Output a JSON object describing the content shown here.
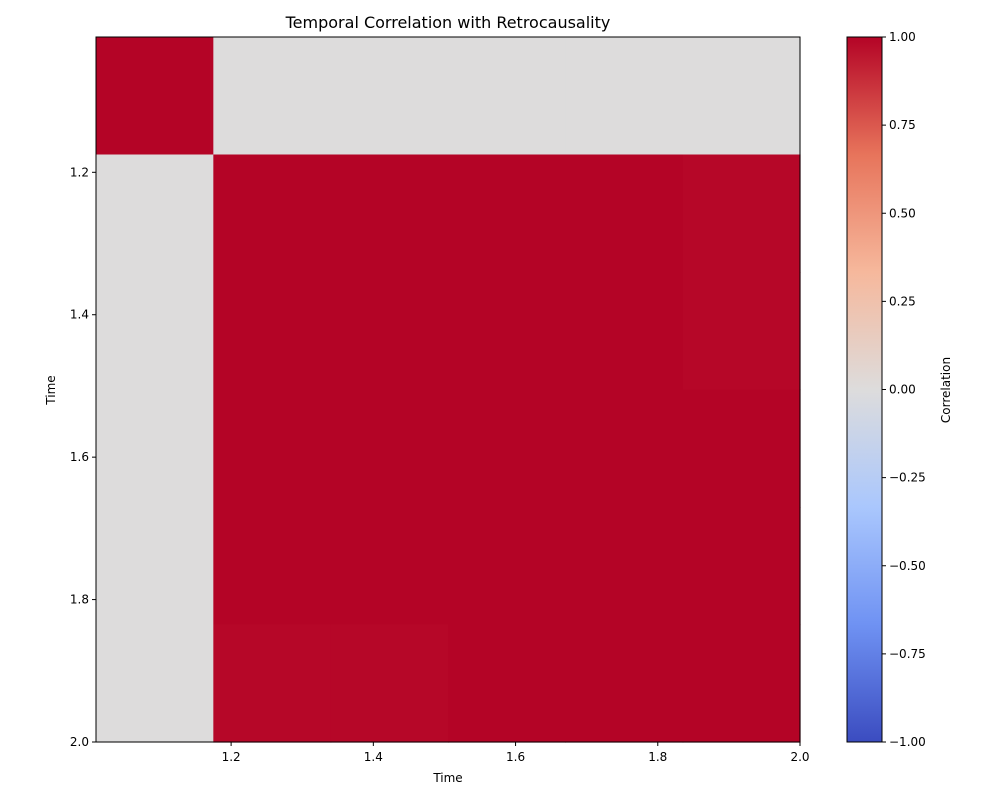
{
  "chart_data": {
    "type": "heatmap",
    "title": "Temporal Correlation with Retrocausality",
    "xlabel": "Time",
    "ylabel": "Time",
    "colorbar_label": "Correlation",
    "x_edges": [
      1.01,
      1.175,
      1.34,
      1.505,
      1.67,
      1.835,
      2.0
    ],
    "y_edges": [
      1.01,
      1.175,
      1.34,
      1.505,
      1.67,
      1.835,
      2.0
    ],
    "values": [
      [
        1.0,
        0.0,
        0.0,
        0.0,
        0.0,
        0.0
      ],
      [
        0.0,
        0.999,
        0.999,
        0.999,
        0.999,
        0.99
      ],
      [
        0.0,
        0.999,
        0.999,
        0.999,
        0.999,
        0.99
      ],
      [
        0.0,
        0.999,
        0.999,
        0.999,
        0.999,
        0.999
      ],
      [
        0.0,
        0.999,
        0.999,
        0.999,
        0.999,
        0.999
      ],
      [
        0.0,
        0.99,
        0.99,
        0.999,
        0.999,
        0.999
      ]
    ],
    "xlim": [
      1.01,
      2.0
    ],
    "ylim": [
      2.0,
      1.01
    ],
    "x_ticks": [
      1.2,
      1.4,
      1.6,
      1.8,
      2.0
    ],
    "x_tick_labels": [
      "1.2",
      "1.4",
      "1.6",
      "1.8",
      "2.0"
    ],
    "y_ticks": [
      1.2,
      1.4,
      1.6,
      1.8,
      2.0
    ],
    "y_tick_labels": [
      "1.2",
      "1.4",
      "1.6",
      "1.8",
      "2.0"
    ],
    "colorbar_range": [
      -1.0,
      1.0
    ],
    "colorbar_ticks": [
      1.0,
      0.75,
      0.5,
      0.25,
      0.0,
      -0.25,
      -0.5,
      -0.75,
      -1.0
    ],
    "colorbar_tick_labels": [
      "1.00",
      "0.75",
      "0.50",
      "0.25",
      "0.00",
      "−0.25",
      "−0.50",
      "−0.75",
      "−1.00"
    ],
    "colormap": "coolwarm",
    "colormap_stops": [
      "#3b4cc0",
      "#6f92f3",
      "#aac7fd",
      "#dddcdc",
      "#f6b89c",
      "#e7745b",
      "#b40426"
    ],
    "grid": false
  }
}
